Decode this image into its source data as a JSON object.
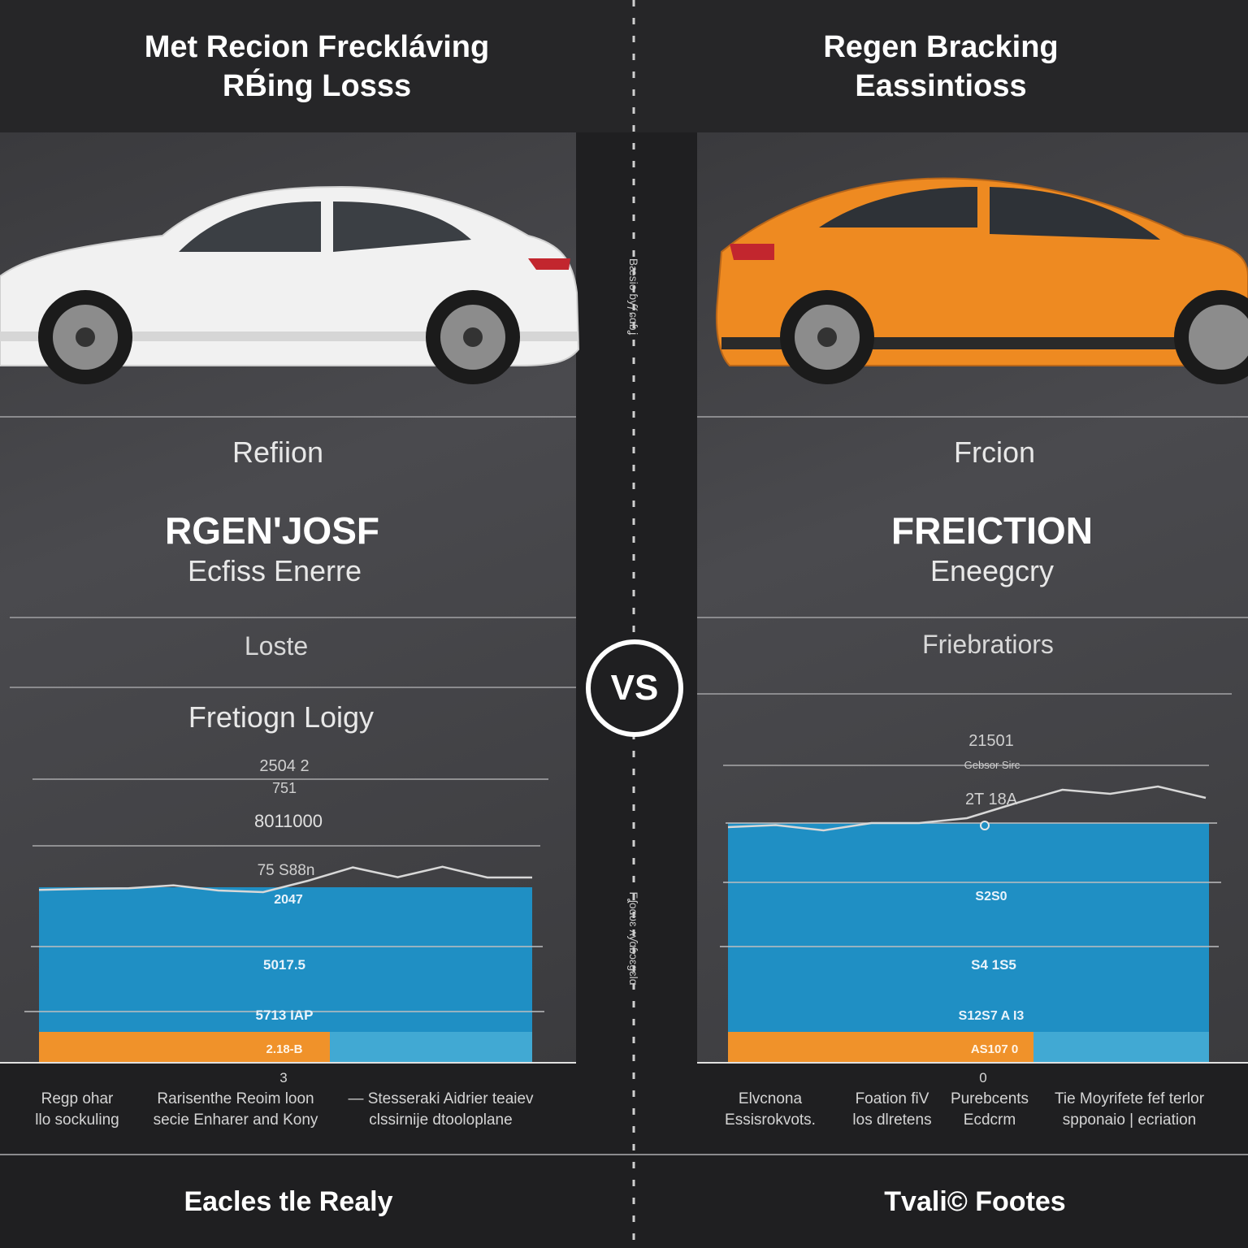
{
  "headers": {
    "left": [
      "Met Recion Freckláving",
      "RB́ing Losss"
    ],
    "right": [
      "Regen Bracking",
      "Eassintioss"
    ]
  },
  "left_panel": {
    "label_top": "Refiion",
    "big_title": "RGEN'JOSF",
    "big_sub": "Ecfiss Enerre",
    "mid_label": "Loste",
    "chart_title": "Fretiogn Loigy"
  },
  "right_panel": {
    "label_top": "Frcion",
    "big_title": "FREICTION",
    "big_sub": "Eneegcry",
    "mid_label": "Friebratiors"
  },
  "vs_label": "VS",
  "center_text": {
    "upper": "Bæsio ɓƴƒɕɑɓʝ",
    "lower": "Fʆoɑʋɛ ʌƴɑɓɔɛɡɛlɑ"
  },
  "legends": {
    "left": [
      {
        "line1": "Regp ohar",
        "line2": "llo sockuling"
      },
      {
        "line1": "Rarisenthe Reoim loon",
        "line2": "secie Enharer and Kony"
      },
      {
        "line1": "— Stesseraki Aidrier teaiev",
        "line2": "clssirnije    dtooloplane"
      }
    ],
    "right": [
      {
        "line1": "Elvcnona",
        "line2": "Essisrokvots."
      },
      {
        "line1": "Foation fiV",
        "line2": "los dlretens"
      },
      {
        "line1": "Purebcents",
        "line2": "Ecdcrm"
      },
      {
        "line1": "Tie Moyrifete fef terlor",
        "line2": "spponaio | ecriation"
      }
    ]
  },
  "footers": {
    "left": "Eacles tle Realy",
    "right": "Tvali© Footes"
  },
  "colors": {
    "bar_blue": "#1f8fc4",
    "bar_blue_light": "#41a9d3",
    "bar_orange": "#f0922a",
    "car_left": "#f3f3f3",
    "car_right": "#ee8a21",
    "line": "#d8d8d8"
  },
  "chart_data": [
    {
      "type": "area",
      "title": "Fretiogn Loigy",
      "annotations": [
        "2504 2",
        "751",
        "8011000",
        "75 S88n",
        "2047",
        "5017.5",
        "5713 IAP",
        "2.18-B",
        "3"
      ],
      "series": [
        {
          "values": [
            0.07,
            0.1,
            0.12,
            0.21,
            0.05,
            0.0,
            0.35,
            0.76,
            0.46,
            0.78,
            0.45,
            0.45
          ]
        }
      ],
      "ylim": [
        0,
        1
      ],
      "bar_fill_levels": {
        "blue": 1.0,
        "orange_width": 0.6
      }
    },
    {
      "type": "area",
      "annotations": [
        "21501",
        "Gebsor Sirc",
        "2T 18A",
        "S2S0",
        "S4 1S5",
        "S12S7 A I3",
        "AS107 0",
        "0"
      ],
      "series": [
        {
          "values": [
            0.0,
            0.05,
            -0.08,
            0.1,
            0.1,
            0.22,
            0.58,
            0.92,
            0.82,
            1.0,
            0.72
          ]
        }
      ],
      "ylim": [
        -0.2,
        1
      ],
      "bar_fill_levels": {
        "blue": 1.0,
        "orange_width": 0.63
      }
    }
  ]
}
